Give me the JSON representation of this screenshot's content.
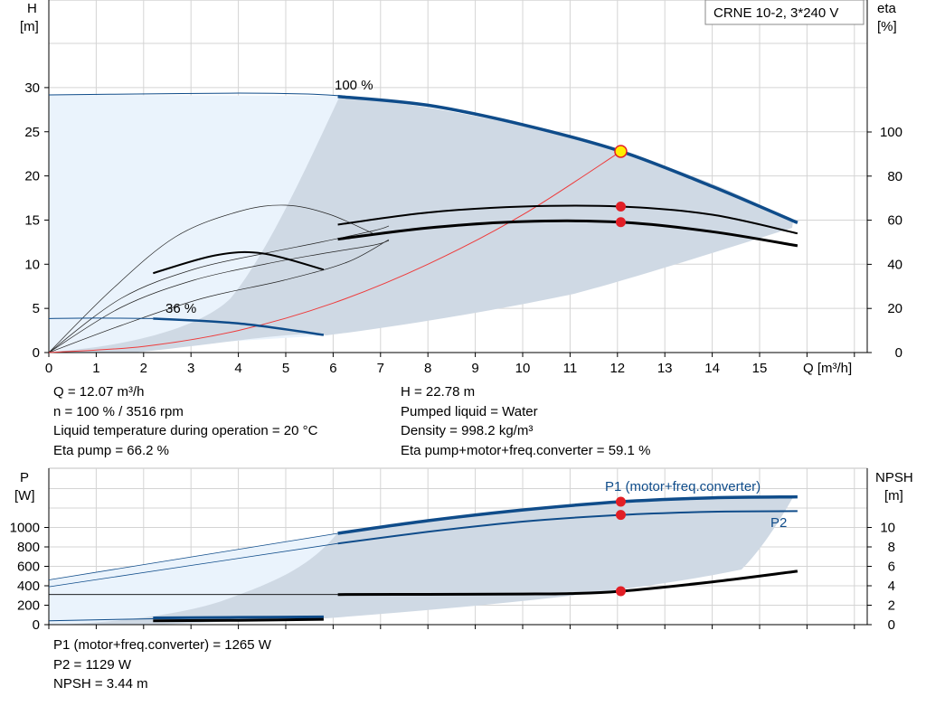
{
  "title_box": "CRNE 10-2, 3*240 V",
  "colors": {
    "curve_blue": "#0f4c8a",
    "area_light": "#eaf3fc",
    "area_grey": "#cfd9e4",
    "grid": "#d4d4d4",
    "duty_point": "#e21f26",
    "system_curve": "#ee3b3b",
    "op_point_fill": "#ffee00"
  },
  "upper_chart": {
    "y_left_label": [
      "H",
      "[m]"
    ],
    "y_right_label": [
      "eta",
      "[%]"
    ],
    "x_label": "Q [m³/h]",
    "x_ticks": [
      "0",
      "1",
      "2",
      "3",
      "4",
      "5",
      "6",
      "7",
      "8",
      "9",
      "10",
      "11",
      "12",
      "13",
      "14",
      "15"
    ],
    "y_left_ticks": [
      "0",
      "5",
      "10",
      "15",
      "20",
      "25",
      "30"
    ],
    "y_right_ticks": [
      "0",
      "20",
      "40",
      "60",
      "80",
      "100"
    ],
    "curve_label_max": "100 %",
    "curve_label_min": "36 %"
  },
  "info_upper": {
    "left": [
      "Q = 12.07 m³/h",
      "n = 100 % / 3516 rpm",
      "Liquid temperature during operation = 20 °C",
      "Eta pump = 66.2 %"
    ],
    "right": [
      "H = 22.78 m",
      "Pumped liquid = Water",
      "Density = 998.2 kg/m³",
      "Eta pump+motor+freq.converter = 59.1 %"
    ]
  },
  "lower_chart": {
    "y_left_label": [
      "P",
      "[W]"
    ],
    "y_right_label": [
      "NPSH",
      "[m]"
    ],
    "y_left_ticks": [
      "0",
      "200",
      "400",
      "600",
      "800",
      "1000"
    ],
    "y_right_ticks": [
      "0",
      "2",
      "4",
      "6",
      "8",
      "10"
    ],
    "p1_label": "P1 (motor+freq.converter)",
    "p2_label": "P2"
  },
  "info_lower": [
    "P1 (motor+freq.converter) = 1265 W",
    "P2 = 1129 W",
    "NPSH = 3.44 m"
  ],
  "chart_data": [
    {
      "type": "line",
      "title": "CRNE 10-2, 3*240 V",
      "xlabel": "Q [m³/h]",
      "ylabel": "H [m]",
      "y2label": "eta [%]",
      "xlim": [
        0,
        16.8
      ],
      "ylim": [
        0,
        35
      ],
      "y2lim": [
        0,
        140
      ],
      "grid": true,
      "series": [
        {
          "name": "100 %",
          "axis": "H",
          "x": [
            0,
            2,
            4,
            6.1,
            8,
            10,
            12.07,
            14,
            15.8
          ],
          "values": [
            29.2,
            29.3,
            29.4,
            29.0,
            28.0,
            25.8,
            22.78,
            18.8,
            14.7
          ]
        },
        {
          "name": "36 %",
          "axis": "H",
          "x": [
            0,
            1,
            2.2,
            4,
            5.8
          ],
          "values": [
            3.85,
            3.9,
            3.85,
            3.3,
            2.0
          ]
        },
        {
          "axis": "H",
          "x": [
            0,
            4.2,
            6.1,
            8,
            10,
            12.07,
            14,
            15.8
          ],
          "values": [
            29.2,
            29.4,
            29.0,
            28.0,
            25.8,
            22.78,
            18.8,
            14.7
          ]
        },
        {
          "axis": "eta",
          "x": [
            6.1,
            8,
            10,
            12.07,
            14,
            15.8
          ],
          "values": [
            58,
            63.5,
            66.2,
            66.2,
            62.5,
            54
          ]
        },
        {
          "axis": "eta",
          "x": [
            6.1,
            8,
            10,
            12.07,
            14,
            15.8
          ],
          "values": [
            51.4,
            56.5,
            59.4,
            59.1,
            54.8,
            48.4
          ]
        },
        {
          "axis": "eta",
          "x": [
            2.2,
            3.5,
            4.5,
            5.8
          ],
          "values": [
            36,
            44,
            45,
            37.6
          ]
        },
        {
          "name": "system",
          "axis": "H",
          "x": [
            0,
            2,
            4,
            6,
            8,
            10,
            12.07
          ],
          "values": [
            0,
            0.7,
            2.5,
            5.6,
            10.0,
            15.6,
            22.78
          ]
        }
      ],
      "duty_points": [
        {
          "x": 12.07,
          "H": 22.78
        },
        {
          "x": 12.07,
          "eta": 66.2
        },
        {
          "x": 12.07,
          "eta": 59.1
        }
      ]
    },
    {
      "type": "line",
      "xlabel": "Q [m³/h]",
      "ylabel": "P [W]",
      "y2label": "NPSH [m]",
      "xlim": [
        0,
        16.8
      ],
      "ylim": [
        0,
        1550
      ],
      "y2lim": [
        0,
        15.5
      ],
      "grid": true,
      "series": [
        {
          "name": "P1 (motor+freq.converter)",
          "axis": "P",
          "x": [
            0,
            6.1,
            8,
            10,
            12.07,
            14,
            15.8
          ],
          "values": [
            460,
            940,
            1070,
            1180,
            1265,
            1305,
            1315
          ]
        },
        {
          "name": "P2",
          "axis": "P",
          "x": [
            0,
            6.1,
            8,
            10,
            12.07,
            14,
            15.8
          ],
          "values": [
            390,
            835,
            955,
            1060,
            1129,
            1162,
            1168
          ]
        },
        {
          "axis": "P",
          "x": [
            0,
            2.2,
            5.8
          ],
          "values": [
            40,
            60,
            80
          ]
        },
        {
          "axis": "P",
          "x": [
            2.2,
            5.8
          ],
          "values": [
            40,
            60
          ]
        },
        {
          "axis": "NPSH",
          "x": [
            0,
            6.1,
            8,
            10,
            11,
            12.07,
            14,
            15.8
          ],
          "values": [
            3.1,
            3.1,
            3.12,
            3.15,
            3.2,
            3.44,
            4.4,
            5.5
          ]
        }
      ],
      "duty_points": [
        {
          "x": 12.07,
          "P": 1265
        },
        {
          "x": 12.07,
          "P": 1129
        },
        {
          "x": 12.07,
          "NPSH": 3.44
        }
      ]
    }
  ]
}
